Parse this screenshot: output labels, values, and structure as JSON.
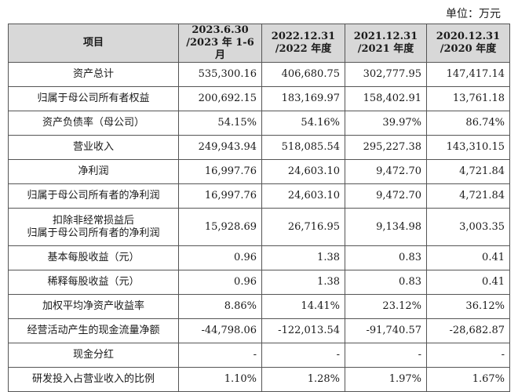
{
  "unit_label": "单位：万元",
  "header": {
    "item": "项目",
    "periods": [
      {
        "line1": "2023.6.30",
        "line2": "/2023 年 1-6 月"
      },
      {
        "line1": "2022.12.31",
        "line2": "/2022 年度"
      },
      {
        "line1": "2021.12.31",
        "line2": "/2021 年度"
      },
      {
        "line1": "2020.12.31",
        "line2": "/2020 年度"
      }
    ]
  },
  "rows": [
    {
      "label": [
        "资产总计"
      ],
      "values": [
        "535,300.16",
        "406,680.75",
        "302,777.95",
        "147,417.14"
      ]
    },
    {
      "label": [
        "归属于母公司所有者权益"
      ],
      "values": [
        "200,692.15",
        "183,169.97",
        "158,402.91",
        "13,761.18"
      ]
    },
    {
      "label": [
        "资产负债率（母公司）"
      ],
      "values": [
        "54.15%",
        "54.16%",
        "39.97%",
        "86.74%"
      ]
    },
    {
      "label": [
        "营业收入"
      ],
      "values": [
        "249,943.94",
        "518,085.54",
        "295,227.38",
        "143,310.15"
      ]
    },
    {
      "label": [
        "净利润"
      ],
      "values": [
        "16,997.76",
        "24,603.10",
        "9,472.70",
        "4,721.84"
      ]
    },
    {
      "label": [
        "归属于母公司所有者的净利润"
      ],
      "values": [
        "16,997.76",
        "24,603.10",
        "9,472.70",
        "4,721.84"
      ]
    },
    {
      "label": [
        "扣除非经常损益后",
        "归属于母公司所有者的净利润"
      ],
      "values": [
        "15,928.69",
        "26,716.95",
        "9,134.98",
        "3,003.35"
      ]
    },
    {
      "label": [
        "基本每股收益（元）"
      ],
      "values": [
        "0.96",
        "1.38",
        "0.83",
        "0.41"
      ]
    },
    {
      "label": [
        "稀释每股收益（元）"
      ],
      "values": [
        "0.96",
        "1.38",
        "0.83",
        "0.41"
      ]
    },
    {
      "label": [
        "加权平均净资产收益率"
      ],
      "values": [
        "8.86%",
        "14.41%",
        "23.12%",
        "36.12%"
      ]
    },
    {
      "label": [
        "经营活动产生的现金流量净额"
      ],
      "values": [
        "-44,798.06",
        "-122,013.54",
        "-91,740.57",
        "-28,682.87"
      ]
    },
    {
      "label": [
        "现金分红"
      ],
      "values": [
        "-",
        "-",
        "-",
        "-"
      ]
    },
    {
      "label": [
        "研发投入占营业收入的比例"
      ],
      "values": [
        "1.10%",
        "1.28%",
        "1.97%",
        "1.67%"
      ]
    }
  ]
}
